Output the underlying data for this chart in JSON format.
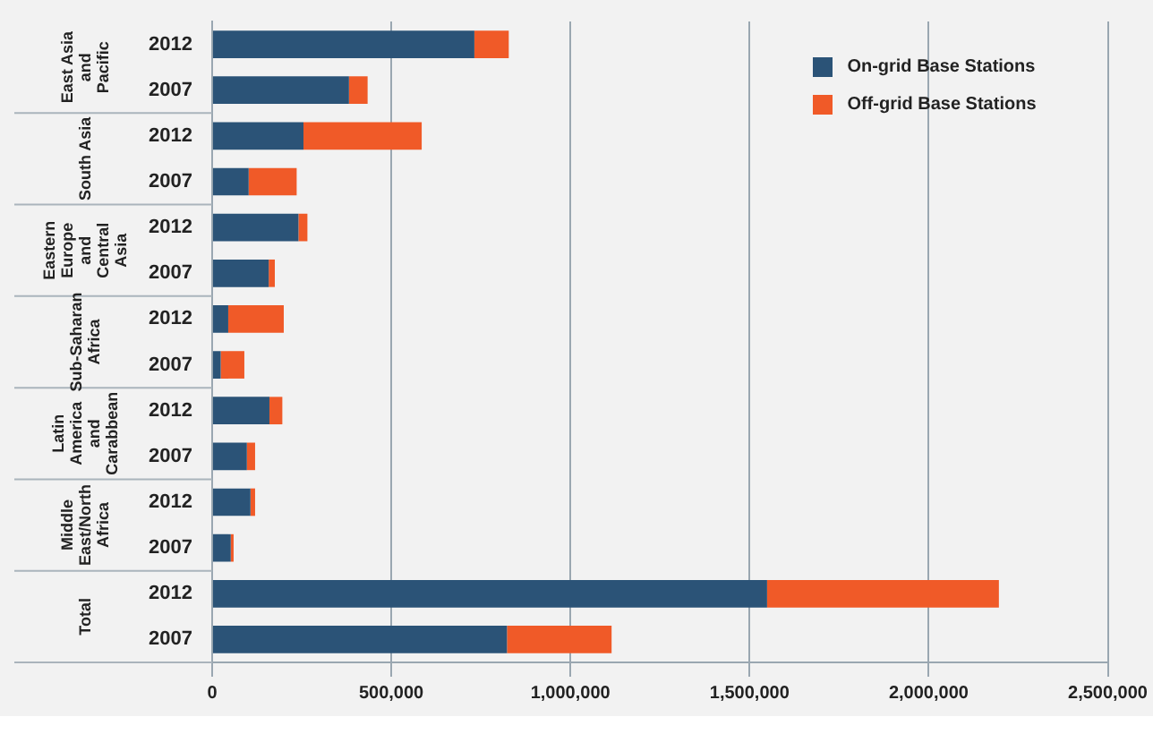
{
  "chart_data": {
    "type": "bar",
    "orientation": "horizontal",
    "stacked": true,
    "categories": [
      "2012",
      "2007",
      "2012",
      "2007",
      "2012",
      "2007",
      "2012",
      "2007",
      "2012",
      "2007",
      "2012",
      "2007",
      "2012",
      "2007"
    ],
    "annotations": [
      "East Asia and Pacific",
      "South Asia",
      "Eastern Europe and Central Asia",
      "Sub-Saharan Africa",
      "Latin America and Carabbean",
      "Middle East/North Africa",
      "Total"
    ],
    "series": [
      {
        "name": "On-grid Base Stations",
        "color": "#2b5377",
        "values": [
          732000,
          382000,
          255000,
          102000,
          241000,
          158000,
          45000,
          24000,
          160000,
          97000,
          107000,
          52000,
          1549000,
          823000
        ]
      },
      {
        "name": "Off-grid Base Stations",
        "color": "#f05a28",
        "values": [
          96000,
          52000,
          330000,
          134000,
          25000,
          17000,
          155000,
          66000,
          36000,
          23000,
          13000,
          8000,
          647000,
          292000
        ]
      }
    ],
    "xlim": [
      0,
      2500000
    ],
    "xticks": [
      {
        "value": 0,
        "label": "0"
      },
      {
        "value": 500000,
        "label": "500,000"
      },
      {
        "value": 1000000,
        "label": "1,000,000"
      },
      {
        "value": 1500000,
        "label": "1,500,000"
      },
      {
        "value": 2000000,
        "label": "2,000,000"
      },
      {
        "value": 2500000,
        "label": "2,500,000"
      }
    ],
    "grid": "x",
    "legend": "top right"
  }
}
